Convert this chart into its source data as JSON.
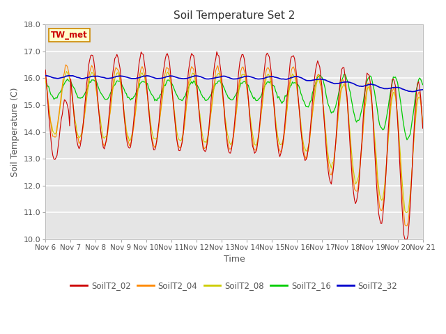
{
  "title": "Soil Temperature Set 2",
  "xlabel": "Time",
  "ylabel": "Soil Temperature (C)",
  "ylim": [
    10.0,
    18.0
  ],
  "yticks": [
    10.0,
    11.0,
    12.0,
    13.0,
    14.0,
    15.0,
    16.0,
    17.0,
    18.0
  ],
  "x_tick_labels": [
    "Nov 6",
    "Nov 7",
    "Nov 8",
    "Nov 9",
    "Nov 10",
    "Nov 11",
    "Nov 12",
    "Nov 13",
    "Nov 14",
    "Nov 15",
    "Nov 16",
    "Nov 17",
    "Nov 18",
    "Nov 19",
    "Nov 20",
    "Nov 21"
  ],
  "series_colors": {
    "SoilT2_02": "#cc0000",
    "SoilT2_04": "#ff8800",
    "SoilT2_08": "#cccc00",
    "SoilT2_16": "#00cc00",
    "SoilT2_32": "#0000cc"
  },
  "annotation_text": "TW_met",
  "annotation_color": "#cc0000",
  "annotation_bg": "#ffffcc",
  "annotation_border": "#cc8800",
  "background_color": "#e5e5e5",
  "grid_color": "#ffffff",
  "title_fontsize": 11,
  "label_fontsize": 9,
  "tick_fontsize": 8
}
